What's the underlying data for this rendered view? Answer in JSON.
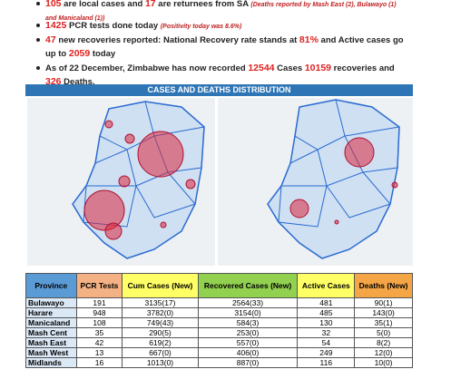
{
  "bullets": [
    {
      "parts": [
        "105",
        " are local cases and ",
        "17",
        " are returnees from SA ",
        "(Deaths reported by Mash East (2), Bulawayo (1) and Manicaland (1))"
      ]
    },
    {
      "parts": [
        "1425",
        " PCR tests done today ",
        "(Positivity today was 8.6%)"
      ]
    },
    {
      "parts": [
        "47",
        " new recoveries reported: National Recovery rate stands at ",
        "81%",
        " and Active cases go up to ",
        "2059",
        " today"
      ]
    },
    {
      "parts": [
        "As of 22 December, Zimbabwe has now recorded ",
        "12544",
        "  Cases ",
        "10159",
        " recoveries and ",
        "326",
        " Deaths."
      ]
    }
  ],
  "banner": "CASES AND DEATHS DISTRIBUTION",
  "table": {
    "header": [
      "Province",
      "PCR Tests",
      "Cum Cases (New)",
      "Recovered Cases (New)",
      "Active Cases",
      "Deaths (New)"
    ],
    "rows": [
      [
        "Bulawayo",
        "191",
        "3135(17)",
        "2564(33)",
        "481",
        "90(1)"
      ],
      [
        "Harare",
        "948",
        "3782(0)",
        "3154(0)",
        "485",
        "143(0)"
      ],
      [
        "Manicaland",
        "108",
        "749(43)",
        "584(3)",
        "130",
        "35(1)"
      ],
      [
        "Mash Cent",
        "35",
        "290(5)",
        "253(0)",
        "32",
        "5(0)"
      ],
      [
        "Mash East",
        "42",
        "619(2)",
        "557(0)",
        "54",
        "8(2)"
      ],
      [
        "Mash West",
        "13",
        "667(0)",
        "406(0)",
        "249",
        "12(0)"
      ],
      [
        "Midlands",
        "16",
        "1013(0)",
        "887(0)",
        "116",
        "10(0)"
      ]
    ]
  }
}
